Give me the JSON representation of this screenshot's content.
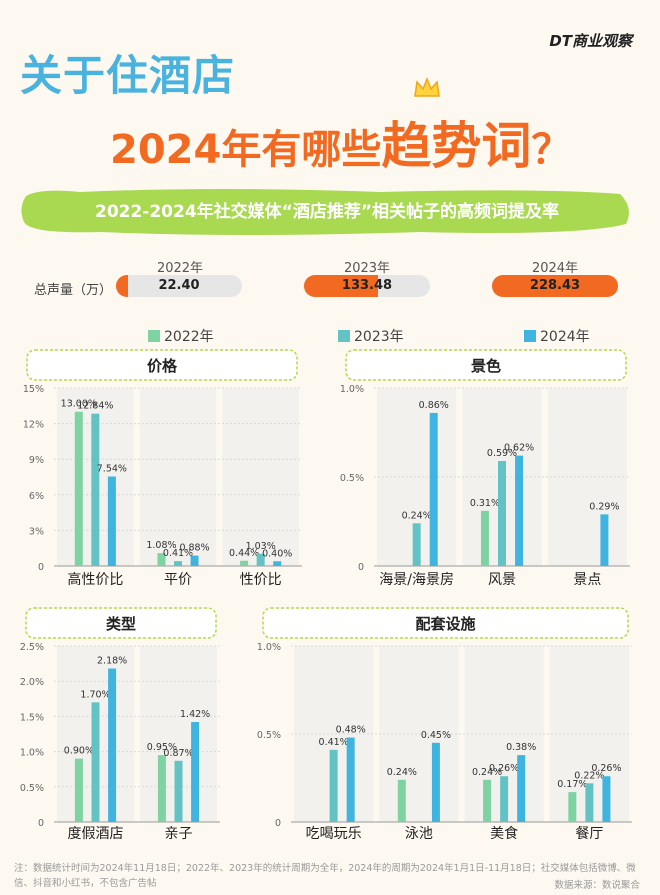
{
  "header": {
    "logo": "DT商业观察",
    "title_line1": "关于住酒店",
    "title_line2_a": "2024年有哪些",
    "title_line2_b": "趋势词",
    "title_line2_c": "？",
    "subtitle": "2022-2024年社交媒体“酒店推荐”相关帖子的高频词提及率"
  },
  "volume": {
    "label": "总声量（万）",
    "items": [
      {
        "year": "2022年",
        "value": "22.40"
      },
      {
        "year": "2023年",
        "value": "133.48"
      },
      {
        "year": "2024年",
        "value": "228.43"
      }
    ]
  },
  "legend": [
    "2022年",
    "2023年",
    "2024年"
  ],
  "colors": {
    "y2022": "#7fd3a3",
    "y2023": "#63c3c4",
    "y2024": "#40b4e0",
    "accent": "#f26a21",
    "title_blue": "#4ab2de",
    "subtitle_green": "#a9d951"
  },
  "chart_data": [
    {
      "type": "bar",
      "title": "价格",
      "categories": [
        "高性价比",
        "平价",
        "性价比"
      ],
      "series": [
        {
          "name": "2022年",
          "values": [
            13.0,
            1.08,
            0.44
          ]
        },
        {
          "name": "2023年",
          "values": [
            12.84,
            0.41,
            1.03
          ]
        },
        {
          "name": "2024年",
          "values": [
            7.54,
            0.88,
            0.4
          ]
        }
      ],
      "labels": [
        [
          "13.00%",
          "1.08%",
          "0.44%"
        ],
        [
          "12.84%",
          "0.41%",
          "1.03%"
        ],
        [
          "7.54%",
          "0.88%",
          "0.40%"
        ]
      ],
      "yticks": [
        "0",
        "3%",
        "6%",
        "9%",
        "12%",
        "15%"
      ],
      "ylim": [
        0,
        15
      ]
    },
    {
      "type": "bar",
      "title": "景色",
      "categories": [
        "海景/海景房",
        "风景",
        "景点"
      ],
      "series": [
        {
          "name": "2022年",
          "values": [
            0,
            0.31,
            0
          ]
        },
        {
          "name": "2023年",
          "values": [
            0.24,
            0.59,
            0
          ]
        },
        {
          "name": "2024年",
          "values": [
            0.86,
            0.62,
            0.29
          ]
        }
      ],
      "labels": [
        [
          "",
          "0.31%",
          ""
        ],
        [
          "0.24%",
          "0.59%",
          ""
        ],
        [
          "0.86%",
          "0.62%",
          "0.29%"
        ]
      ],
      "yticks": [
        "0",
        "0.5%",
        "1.0%"
      ],
      "ylim": [
        0,
        1.0
      ]
    },
    {
      "type": "bar",
      "title": "类型",
      "categories": [
        "度假酒店",
        "亲子"
      ],
      "series": [
        {
          "name": "2022年",
          "values": [
            0.9,
            0.95
          ]
        },
        {
          "name": "2023年",
          "values": [
            1.7,
            0.87
          ]
        },
        {
          "name": "2024年",
          "values": [
            2.18,
            1.42
          ]
        }
      ],
      "labels": [
        [
          "0.90%",
          "0.95%"
        ],
        [
          "1.70%",
          "0.87%"
        ],
        [
          "2.18%",
          "1.42%"
        ]
      ],
      "yticks": [
        "0",
        "0.5%",
        "1.0%",
        "1.5%",
        "2.0%",
        "2.5%"
      ],
      "ylim": [
        0,
        2.5
      ]
    },
    {
      "type": "bar",
      "title": "配套设施",
      "categories": [
        "吃喝玩乐",
        "泳池",
        "美食",
        "餐厅"
      ],
      "series": [
        {
          "name": "2022年",
          "values": [
            0,
            0.24,
            0.24,
            0.17
          ]
        },
        {
          "name": "2023年",
          "values": [
            0.41,
            0,
            0.26,
            0.22
          ]
        },
        {
          "name": "2024年",
          "values": [
            0.48,
            0.45,
            0.38,
            0.26
          ]
        }
      ],
      "labels": [
        [
          "",
          "0.24%",
          "0.24%",
          "0.17%"
        ],
        [
          "0.41%",
          "",
          "0.26%",
          "0.22%"
        ],
        [
          "0.48%",
          "0.45%",
          "0.38%",
          "0.26%"
        ]
      ],
      "yticks": [
        "0",
        "0.5%",
        "1.0%"
      ],
      "ylim": [
        0,
        1.0
      ]
    }
  ],
  "footer": {
    "note": "注：数据统计时间为2024年11月18日；2022年、2023年的统计周期为全年，2024年的周期为2024年1月1日-11月18日；社交媒体包括微博、微信、抖音和小红书，不包含广告帖",
    "source": "数据来源：数说聚合"
  }
}
